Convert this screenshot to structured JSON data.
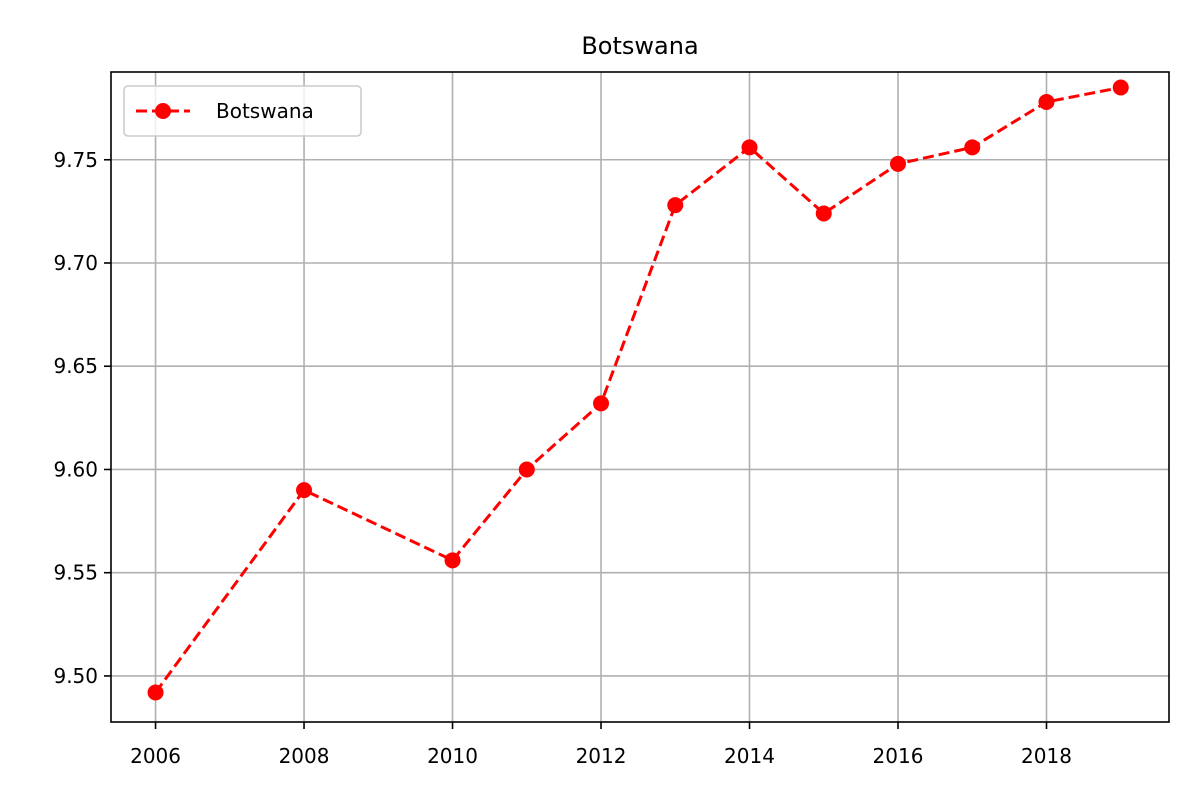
{
  "chart_data": {
    "type": "line",
    "title": "Botswana",
    "xlabel": "",
    "ylabel": "",
    "x_ticks": [
      2006,
      2008,
      2010,
      2012,
      2014,
      2016,
      2018
    ],
    "y_ticks": [
      9.5,
      9.55,
      9.6,
      9.65,
      9.7,
      9.75
    ],
    "y_tick_labels": [
      "9.50",
      "9.55",
      "9.60",
      "9.65",
      "9.70",
      "9.75"
    ],
    "xlim": [
      2005.4,
      2019.65
    ],
    "ylim": [
      9.4777,
      9.7925
    ],
    "grid": true,
    "legend_position": "top-left",
    "series": [
      {
        "name": "Botswana",
        "color": "#ff0000",
        "line_style": "dashed",
        "marker": "circle",
        "x": [
          2006,
          2008,
          2010,
          2011,
          2012,
          2013,
          2014,
          2015,
          2016,
          2017,
          2018,
          2019
        ],
        "y": [
          9.492,
          9.59,
          9.556,
          9.6,
          9.632,
          9.728,
          9.756,
          9.724,
          9.748,
          9.756,
          9.778,
          9.785
        ]
      }
    ]
  }
}
